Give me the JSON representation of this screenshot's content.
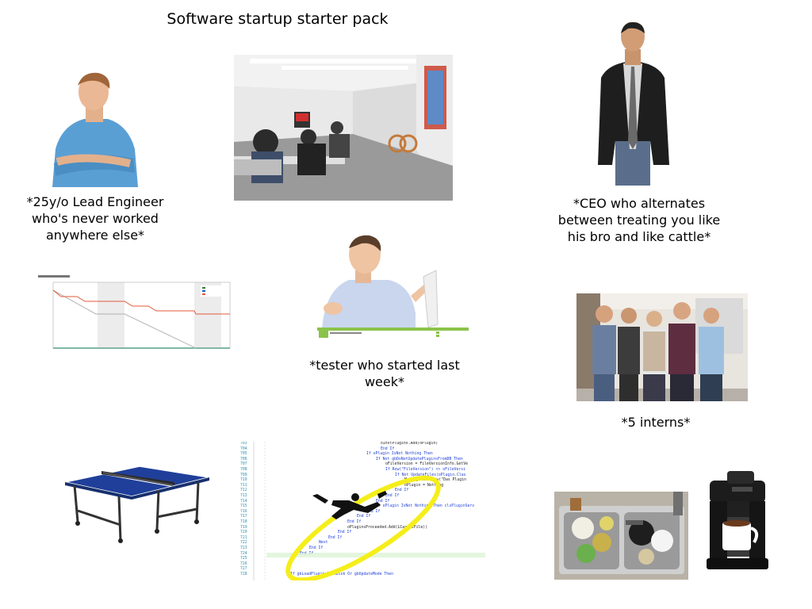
{
  "title": "Software startup starter pack",
  "captions": {
    "lead_engineer": "*25y/o Lead Engineer who's never worked anywhere else*",
    "ceo": "*CEO who alternates between treating you like his bro and like cattle*",
    "tester": "*tester who started last week*",
    "interns": "*5 interns*"
  },
  "code_snippet": {
    "lines": [
      "oInstPlugins.Add(oPlugin)",
      "End If",
      "If oPlugin IsNot Nothing Then",
      "If Not gbDoNotUpdatePluginsFromDB Then",
      "oFileVersion = FileVersionInfo.GetVe",
      "If Row(\"FileVersion\") <> oFileVersi",
      "If Not UpdateFiles(oPlugin.Clas",
      "MessageBox.Show(\"Das Plugin",
      "oPlugin = Nothing",
      "End If",
      "End If",
      "End If",
      "If oPlugin IsNot Nothing Then clsPluginServ",
      "End If",
      "End If",
      "End If",
      "oPluginsProceeded.Add(LCase(sFile))",
      "End If",
      "End If",
      "Next",
      "End If",
      "End If",
      "If gbLoadPluginsFromDisk Or gbUpdateMode Then"
    ],
    "line_numbers": [
      "703",
      "704",
      "705",
      "706",
      "707",
      "708",
      "709",
      "710",
      "711",
      "712",
      "713",
      "714",
      "715",
      "716",
      "717",
      "718",
      "719",
      "720",
      "721",
      "722",
      "723",
      "724",
      "725",
      "726",
      "727",
      "728"
    ]
  },
  "colors": {
    "code_keyword": "#1f3fd8",
    "code_string": "#a31515",
    "code_class": "#2b91af",
    "highlight_ellipse": "#f5ee1a",
    "ping_pong_table": "#1f3f9a"
  }
}
